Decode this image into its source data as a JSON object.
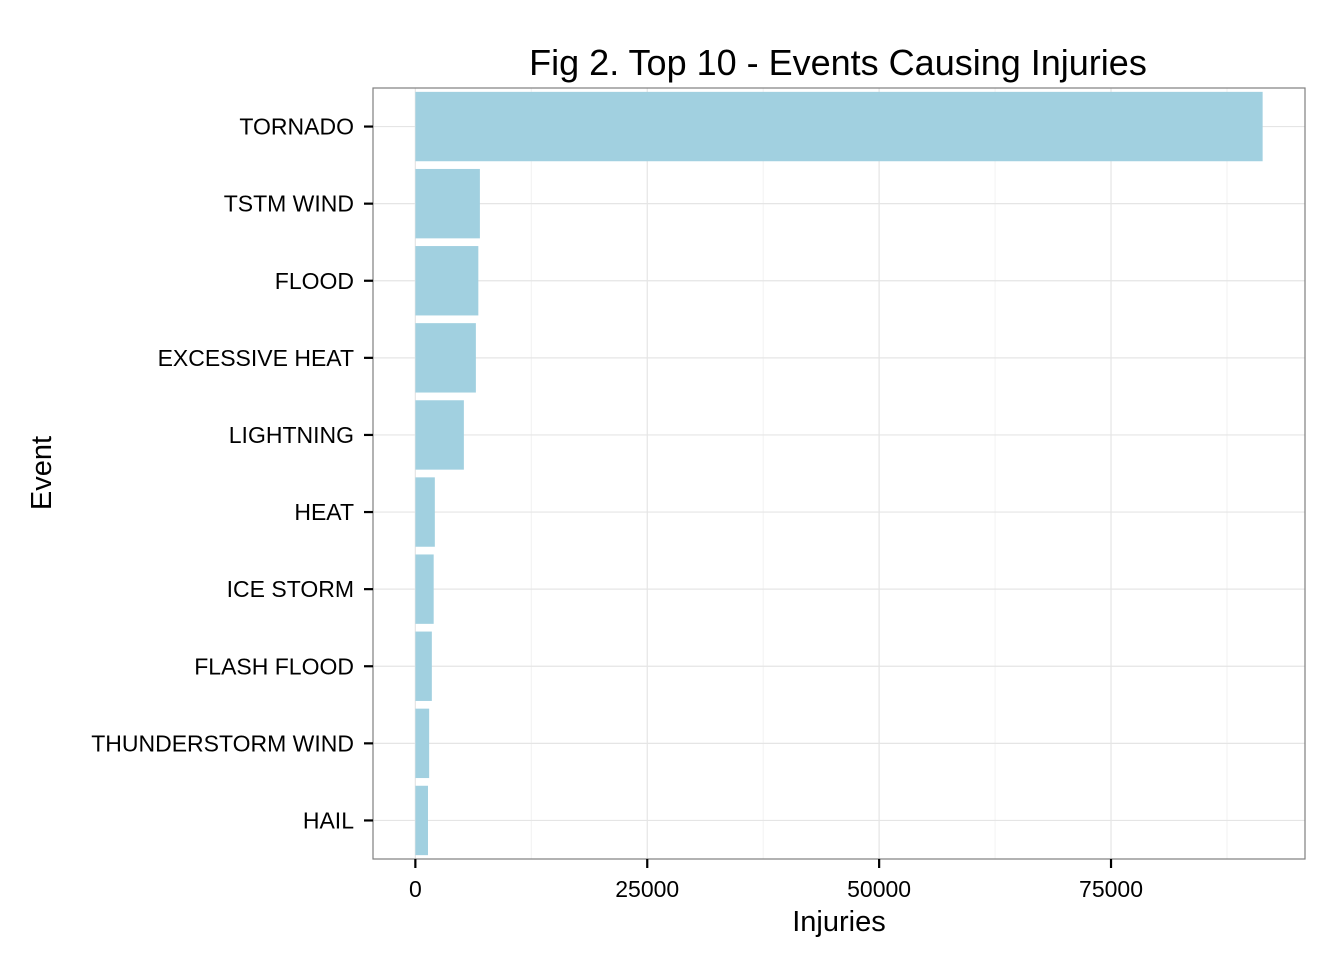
{
  "chart_data": {
    "type": "bar",
    "orientation": "horizontal",
    "title": "Fig 2. Top 10 - Events Causing Injuries",
    "xlabel": "Injuries",
    "ylabel": "Event",
    "categories": [
      "TORNADO",
      "TSTM WIND",
      "FLOOD",
      "EXCESSIVE HEAT",
      "LIGHTNING",
      "HEAT",
      "ICE STORM",
      "FLASH FLOOD",
      "THUNDERSTORM WIND",
      "HAIL"
    ],
    "values": [
      91346,
      6957,
      6789,
      6525,
      5230,
      2100,
      1975,
      1777,
      1488,
      1361
    ],
    "xlim": [
      -4567,
      95913
    ],
    "x_ticks": [
      0,
      25000,
      50000,
      75000
    ],
    "x_tick_labels": [
      "0",
      "25000",
      "50000",
      "75000"
    ],
    "grid": true,
    "bar_color": "#a1d0e0",
    "grid_color": "#e5e5e5",
    "panel_border_color": "#7f7f7f"
  }
}
